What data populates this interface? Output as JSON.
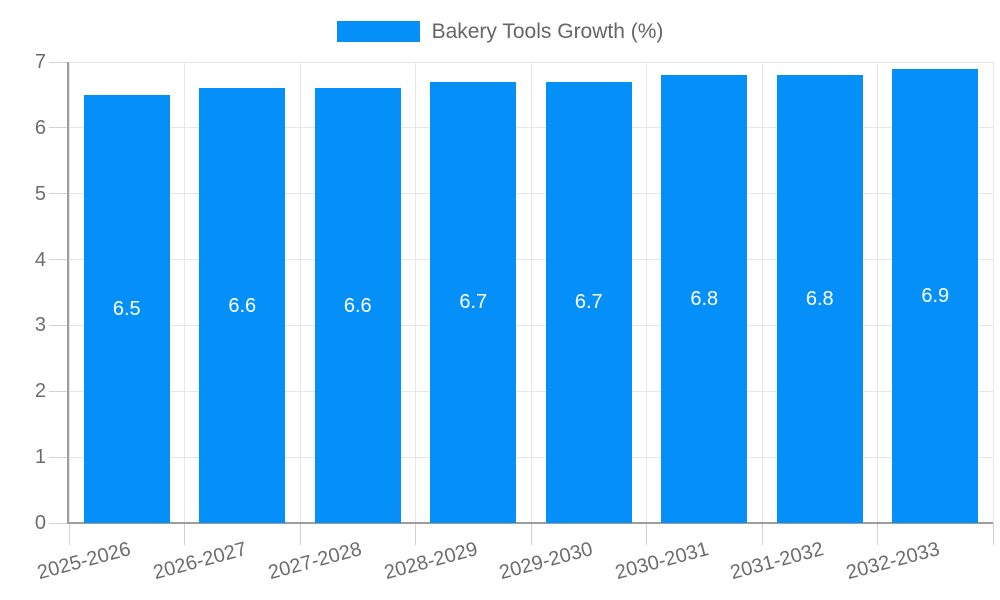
{
  "chart_data": {
    "type": "bar",
    "title": "Bakery Tools Growth (%)",
    "legend": "Bakery Tools Growth (%)",
    "legend_position": "top",
    "categories": [
      "2025-2026",
      "2026-2027",
      "2027-2028",
      "2028-2029",
      "2029-2030",
      "2030-2031",
      "2031-2032",
      "2032-2033"
    ],
    "values": [
      6.5,
      6.6,
      6.6,
      6.7,
      6.7,
      6.8,
      6.8,
      6.9
    ],
    "bar_labels": [
      "6.5",
      "6.6",
      "6.6",
      "6.7",
      "6.7",
      "6.8",
      "6.8",
      "6.9"
    ],
    "xlabel": "",
    "ylabel": "",
    "ylim": [
      0,
      7
    ],
    "yticks": [
      0,
      1,
      2,
      3,
      4,
      5,
      6,
      7
    ],
    "grid": true,
    "colors": {
      "bar": "#0590f9",
      "grid": "#e7e7e7",
      "tick": "#d2d2d2",
      "axis": "#9e9e9e",
      "axis_text": "#6d6d6d",
      "legend_text": "#666666",
      "bar_label_text": "#ffffff",
      "background": "#ffffff"
    }
  }
}
